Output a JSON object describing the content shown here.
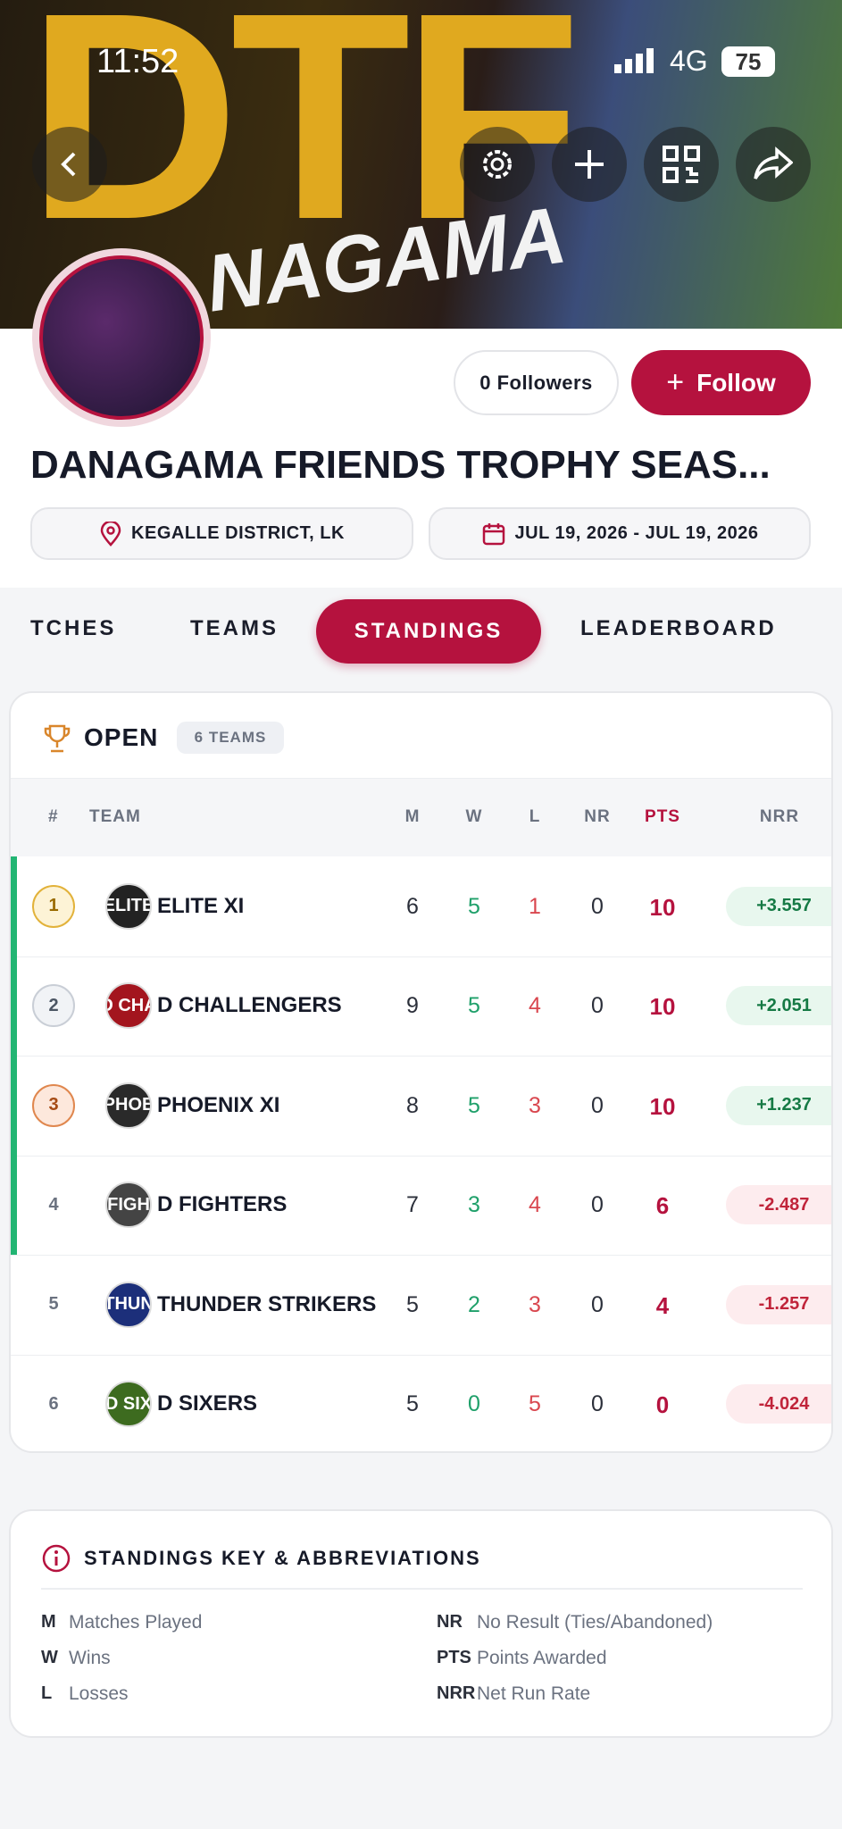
{
  "status": {
    "time": "11:52",
    "network": "4G",
    "battery": "75"
  },
  "banner": {
    "big_text": "DTF",
    "sub_text": "NAGAMA"
  },
  "header": {
    "followers": "0 Followers",
    "follow": "Follow",
    "title": "DANAGAMA FRIENDS TROPHY SEAS...",
    "location": "KEGALLE DISTRICT, LK",
    "dates": "JUL 19, 2026 - JUL 19, 2026"
  },
  "tabs": {
    "items": [
      "TCHES",
      "TEAMS",
      "STANDINGS",
      "LEADERBOARD"
    ],
    "active": 2
  },
  "group": {
    "name": "OPEN",
    "count": "6 TEAMS"
  },
  "table": {
    "columns": [
      "#",
      "TEAM",
      "M",
      "W",
      "L",
      "NR",
      "PTS",
      "NRR"
    ],
    "rows": [
      [
        "1",
        "ELITE",
        "ELITE XI",
        "6",
        "5",
        "1",
        "0",
        "10",
        "+3.557"
      ],
      [
        "2",
        "D CHA",
        "D CHALLENGERS",
        "9",
        "5",
        "4",
        "0",
        "10",
        "+2.051"
      ],
      [
        "3",
        "PHOE",
        "PHOENIX XI",
        "8",
        "5",
        "3",
        "0",
        "10",
        "+1.237"
      ],
      [
        "4",
        "FIGH",
        "D FIGHTERS",
        "7",
        "3",
        "4",
        "0",
        "6",
        "-2.487"
      ],
      [
        "5",
        "THUN",
        "THUNDER STRIKERS",
        "5",
        "2",
        "3",
        "0",
        "4",
        "-1.257"
      ],
      [
        "6",
        "D SIX",
        "D SIXERS",
        "5",
        "0",
        "5",
        "0",
        "0",
        "-4.024"
      ]
    ]
  },
  "key": {
    "title": "STANDINGS KEY & ABBREVIATIONS",
    "items": [
      [
        "M",
        "Matches Played"
      ],
      [
        "NR",
        "No Result (Ties/Abandoned)"
      ],
      [
        "W",
        "Wins"
      ],
      [
        "PTS",
        "Points Awarded"
      ],
      [
        "L",
        "Losses"
      ],
      [
        "NRR",
        "Net Run Rate"
      ]
    ]
  }
}
